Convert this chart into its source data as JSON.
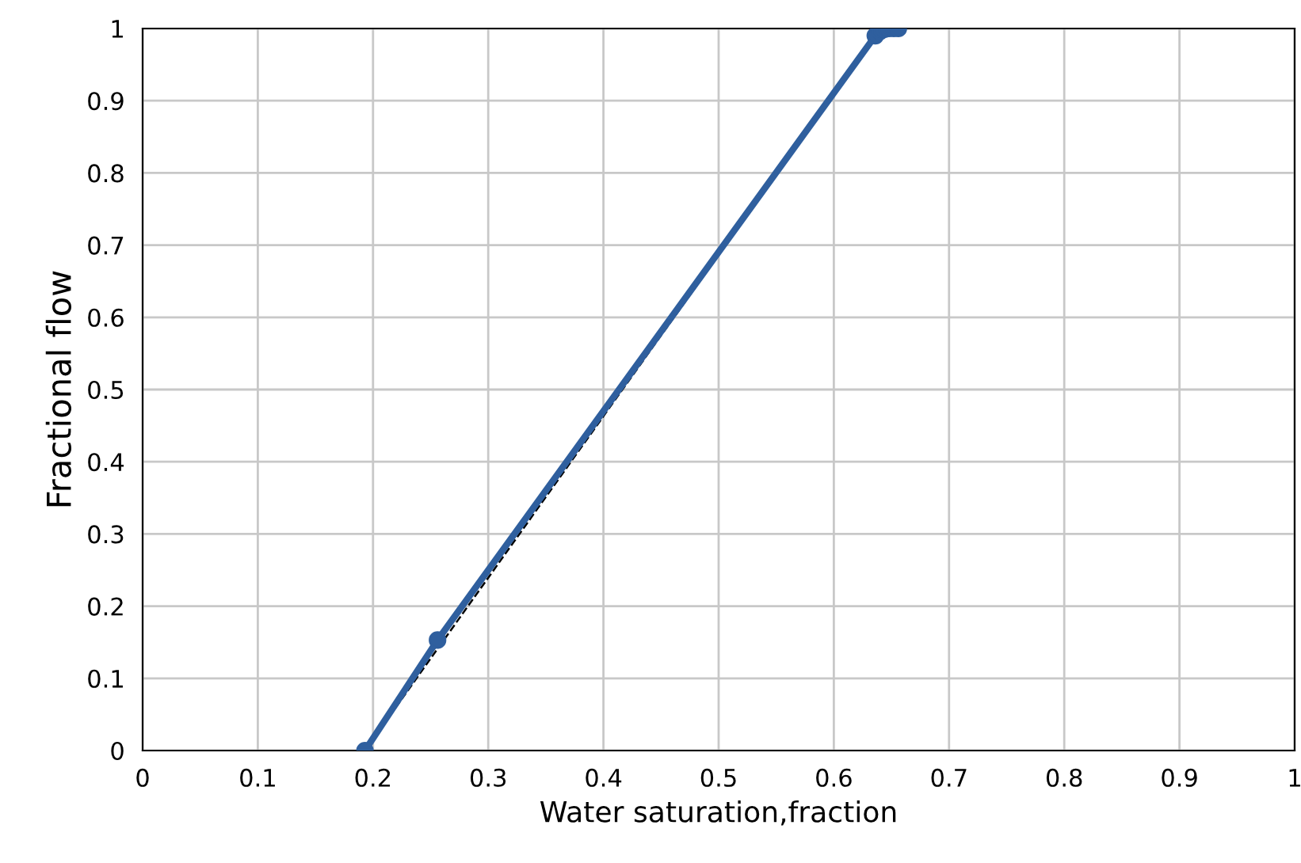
{
  "chart_data": {
    "type": "line",
    "xlabel": "Water saturation,fraction",
    "ylabel": "Fractional flow",
    "xlim": [
      0,
      1
    ],
    "ylim": [
      0,
      1
    ],
    "xticks": [
      0,
      0.1,
      0.2,
      0.3,
      0.4,
      0.5,
      0.6,
      0.7,
      0.8,
      0.9,
      1
    ],
    "yticks": [
      0,
      0.1,
      0.2,
      0.3,
      0.4,
      0.5,
      0.6,
      0.7,
      0.8,
      0.9,
      1
    ],
    "grid": true,
    "series": [
      {
        "color": "#2f5f9e",
        "marker": "circle",
        "line_style": "solid",
        "x": [
          0.193,
          0.256,
          0.636,
          0.64,
          0.644,
          0.648,
          0.652,
          0.656
        ],
        "values": [
          0,
          0.153,
          0.99,
          0.996,
          0.999,
          1,
          1,
          1
        ]
      },
      {
        "color": "#000000",
        "marker": "none",
        "line_style": "dashed",
        "x": [
          0.193,
          0.64
        ],
        "values": [
          0,
          1
        ]
      }
    ]
  }
}
